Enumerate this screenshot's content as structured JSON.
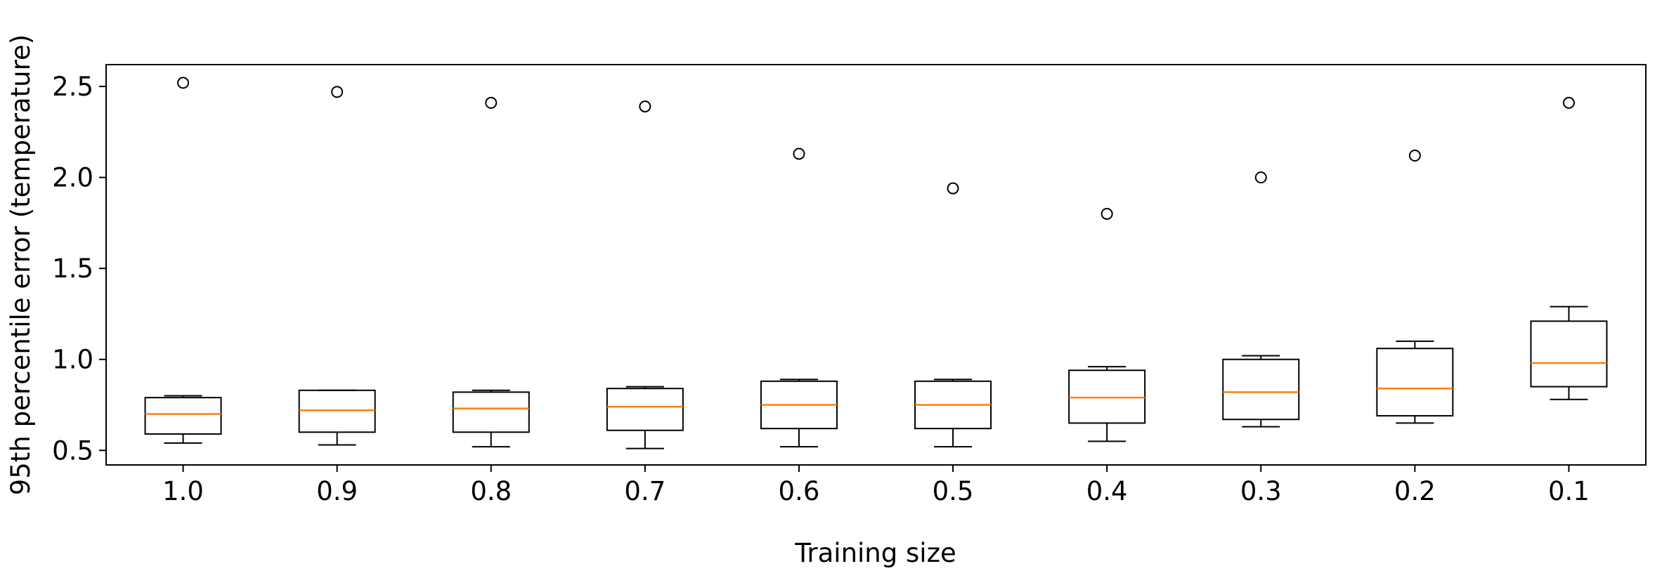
{
  "chart_data": {
    "type": "boxplot",
    "title": "",
    "xlabel": "Training size",
    "ylabel": "95th percentile error  (temperature)",
    "categories": [
      "1.0",
      "0.9",
      "0.8",
      "0.7",
      "0.6",
      "0.5",
      "0.4",
      "0.3",
      "0.2",
      "0.1"
    ],
    "ylim": [
      0.42,
      2.62
    ],
    "yticks": [
      0.5,
      1.0,
      1.5,
      2.0,
      2.5
    ],
    "ytick_labels": [
      "0.5",
      "1.0",
      "1.5",
      "2.0",
      "2.5"
    ],
    "boxes": [
      {
        "whislo": 0.54,
        "q1": 0.59,
        "med": 0.7,
        "q3": 0.79,
        "whishi": 0.8,
        "fliers": [
          2.52
        ]
      },
      {
        "whislo": 0.53,
        "q1": 0.6,
        "med": 0.72,
        "q3": 0.83,
        "whishi": 0.83,
        "fliers": [
          2.47
        ]
      },
      {
        "whislo": 0.52,
        "q1": 0.6,
        "med": 0.73,
        "q3": 0.82,
        "whishi": 0.83,
        "fliers": [
          2.41
        ]
      },
      {
        "whislo": 0.51,
        "q1": 0.61,
        "med": 0.74,
        "q3": 0.84,
        "whishi": 0.85,
        "fliers": [
          2.39
        ]
      },
      {
        "whislo": 0.52,
        "q1": 0.62,
        "med": 0.75,
        "q3": 0.88,
        "whishi": 0.89,
        "fliers": [
          2.13
        ]
      },
      {
        "whislo": 0.52,
        "q1": 0.62,
        "med": 0.75,
        "q3": 0.88,
        "whishi": 0.89,
        "fliers": [
          1.94
        ]
      },
      {
        "whislo": 0.55,
        "q1": 0.65,
        "med": 0.79,
        "q3": 0.94,
        "whishi": 0.96,
        "fliers": [
          1.8
        ]
      },
      {
        "whislo": 0.63,
        "q1": 0.67,
        "med": 0.82,
        "q3": 1.0,
        "whishi": 1.02,
        "fliers": [
          2.0
        ]
      },
      {
        "whislo": 0.65,
        "q1": 0.69,
        "med": 0.84,
        "q3": 1.06,
        "whishi": 1.1,
        "fliers": [
          2.12
        ]
      },
      {
        "whislo": 0.78,
        "q1": 0.85,
        "med": 0.98,
        "q3": 1.21,
        "whishi": 1.29,
        "fliers": [
          2.41
        ]
      }
    ],
    "colors": {
      "box": "#000000",
      "median": "#ff7f0e",
      "flier": "#000000"
    },
    "grid": false,
    "legend": "none"
  }
}
